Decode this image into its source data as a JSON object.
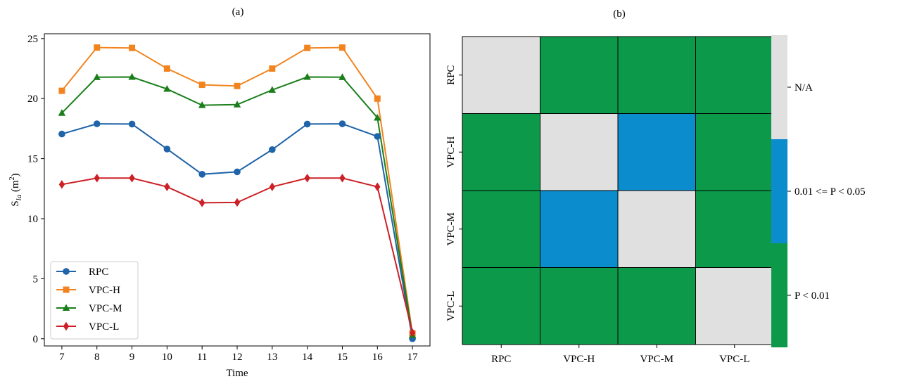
{
  "panel_a_label": "(a)",
  "panel_b_label": "(b)",
  "chart_data": [
    {
      "type": "line",
      "title": "(a)",
      "xlabel": "Time",
      "ylabel": "S_la (m²)",
      "ylabel_parts": {
        "main": "S",
        "sub": "la",
        "unit_open": " (m",
        "sup": "2",
        "unit_close": ")"
      },
      "x": [
        7,
        8,
        9,
        10,
        11,
        12,
        13,
        14,
        15,
        16,
        17
      ],
      "xlim": [
        6.5,
        17.5
      ],
      "ylim": [
        -0.6,
        25.4
      ],
      "xticks": [
        "7",
        "8",
        "9",
        "10",
        "11",
        "12",
        "13",
        "14",
        "15",
        "16",
        "17"
      ],
      "yticks": [
        "0",
        "5",
        "10",
        "15",
        "20",
        "25"
      ],
      "ytick_values": [
        0,
        5,
        10,
        15,
        20,
        25
      ],
      "grid": false,
      "legend_position": "bottom-left",
      "series": [
        {
          "name": "RPC",
          "color": "#1f63a8",
          "marker": "circle",
          "values": [
            17.05,
            17.9,
            17.88,
            15.8,
            13.7,
            13.9,
            15.75,
            17.88,
            17.9,
            16.85,
            0.0
          ]
        },
        {
          "name": "VPC-H",
          "color": "#f28420",
          "marker": "square",
          "values": [
            20.65,
            24.25,
            24.22,
            22.5,
            21.15,
            21.05,
            22.5,
            24.22,
            24.25,
            20.0,
            0.45
          ]
        },
        {
          "name": "VPC-M",
          "color": "#1a7f1a",
          "marker": "triangle",
          "values": [
            18.8,
            21.78,
            21.8,
            20.8,
            19.45,
            19.5,
            20.72,
            21.8,
            21.78,
            18.4,
            0.3
          ]
        },
        {
          "name": "VPC-L",
          "color": "#cc2026",
          "marker": "diamond",
          "values": [
            12.85,
            13.38,
            13.38,
            12.65,
            11.32,
            11.35,
            12.65,
            13.38,
            13.38,
            12.65,
            0.5
          ]
        }
      ]
    },
    {
      "type": "heatmap",
      "title": "(b)",
      "rows": [
        "RPC",
        "VPC-H",
        "VPC-M",
        "VPC-L"
      ],
      "columns": [
        "RPC",
        "VPC-H",
        "VPC-M",
        "VPC-L"
      ],
      "cells": [
        [
          "N/A",
          "P < 0.01",
          "P < 0.01",
          "P < 0.01"
        ],
        [
          "P < 0.01",
          "N/A",
          "0.01 <= P < 0.05",
          "P < 0.01"
        ],
        [
          "P < 0.01",
          "0.01 <= P < 0.05",
          "N/A",
          "P < 0.01"
        ],
        [
          "P < 0.01",
          "P < 0.01",
          "P < 0.01",
          "N/A"
        ]
      ],
      "categories": [
        {
          "label": "N/A",
          "color": "#e0e0e0"
        },
        {
          "label": "0.01 <= P < 0.05",
          "color": "#0b8ccc"
        },
        {
          "label": "P < 0.01",
          "color": "#0c9a4a"
        }
      ]
    }
  ]
}
